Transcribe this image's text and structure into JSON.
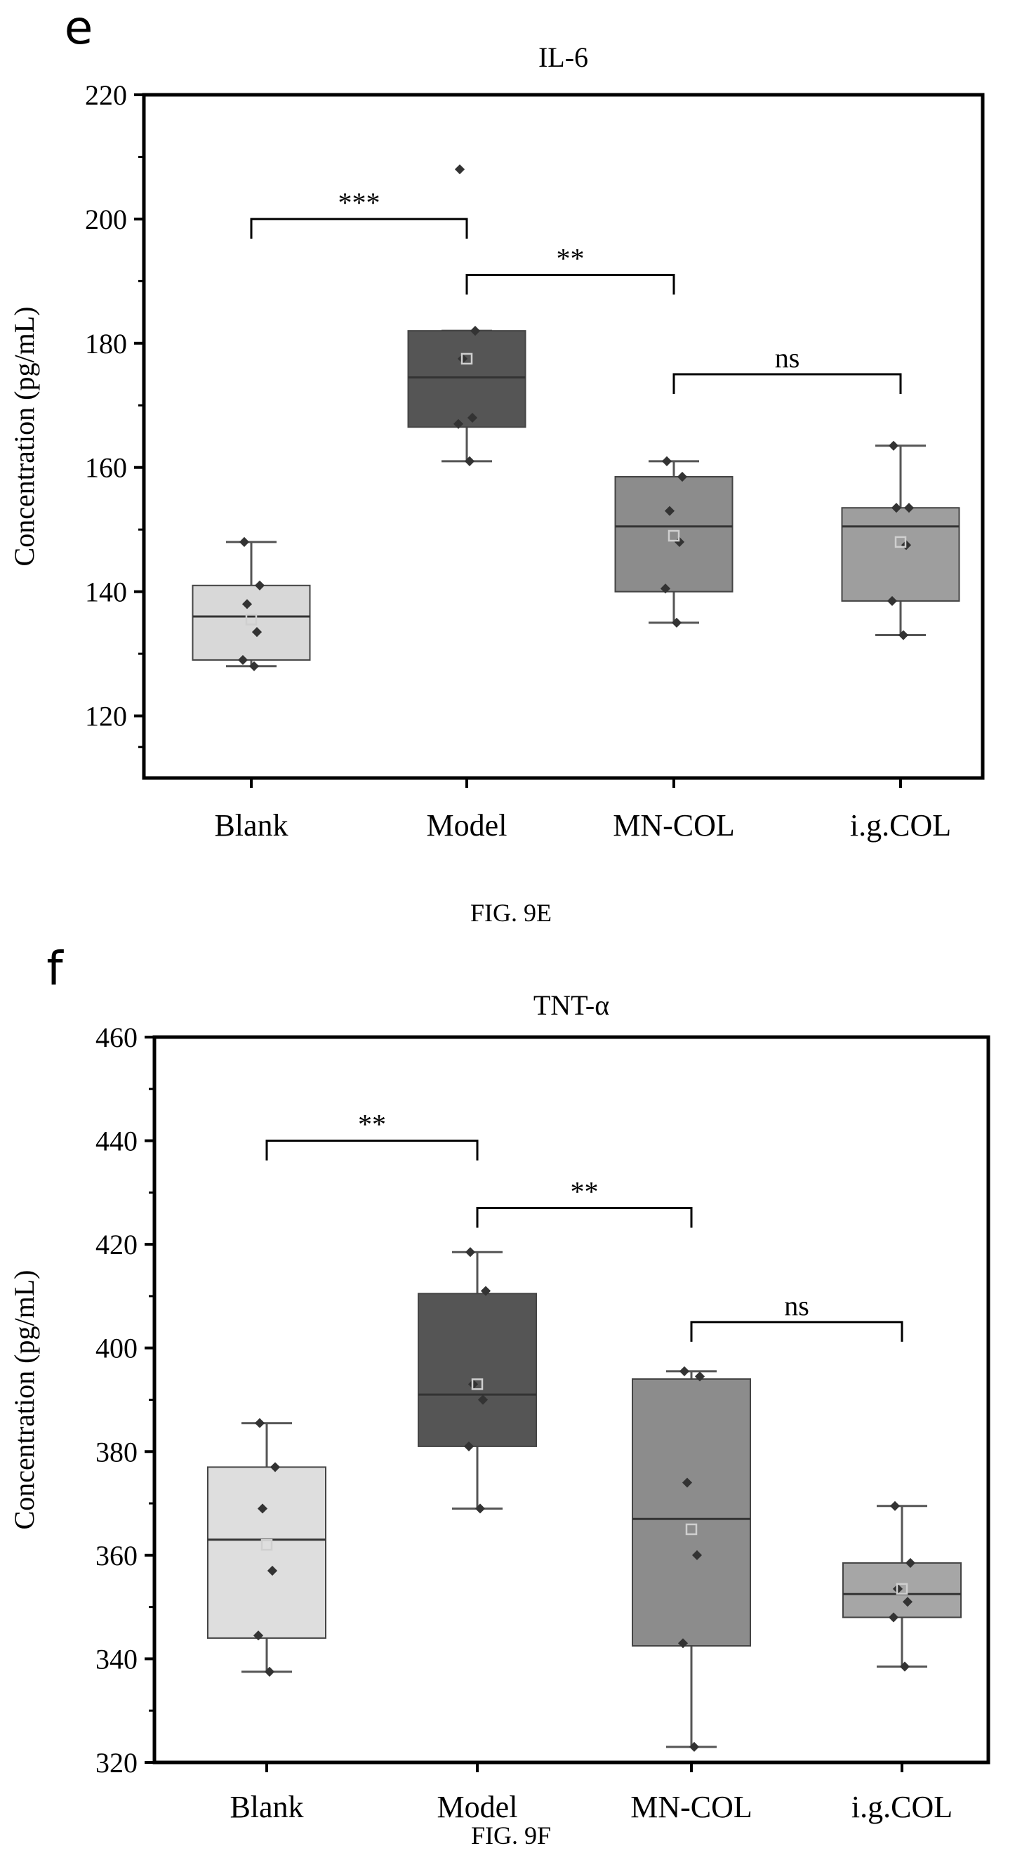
{
  "chart_data": [
    {
      "type": "box",
      "panel_letter": "e",
      "title": "IL-6",
      "ylabel": "Concentration (pg/mL)",
      "ylim": [
        110,
        220
      ],
      "yticks": [
        120,
        140,
        160,
        180,
        200,
        220
      ],
      "categories": [
        "Blank",
        "Model",
        "MN-COL",
        "i.g.COL"
      ],
      "caption": "FIG. 9E",
      "boxes": [
        {
          "category": "Blank",
          "min": 128,
          "q1": 129,
          "median": 136,
          "q3": 141,
          "max": 148,
          "mean": 135.5,
          "fill": "#d8d8d8",
          "points": [
            148,
            141,
            138,
            133.5,
            129,
            128
          ]
        },
        {
          "category": "Model",
          "min": 161,
          "q1": 166.5,
          "median": 174.5,
          "q3": 182,
          "max": 182,
          "mean": 177.5,
          "fill": "#555555",
          "points": [
            208,
            182,
            177.5,
            168,
            167,
            161
          ]
        },
        {
          "category": "MN-COL",
          "min": 135,
          "q1": 140,
          "median": 150.5,
          "q3": 158.5,
          "max": 161,
          "mean": 149,
          "fill": "#8c8c8c",
          "points": [
            161,
            158.5,
            153,
            148,
            140.5,
            135
          ]
        },
        {
          "category": "i.g.COL",
          "min": 133,
          "q1": 138.5,
          "median": 150.5,
          "q3": 153.5,
          "max": 163.5,
          "mean": 148,
          "fill": "#9e9e9e",
          "points": [
            163.5,
            153.5,
            153.5,
            147.5,
            138.5,
            133
          ]
        }
      ],
      "significance": [
        {
          "from": 0,
          "to": 1,
          "y": 200,
          "label": "***"
        },
        {
          "from": 1,
          "to": 2,
          "y": 191,
          "label": "**"
        },
        {
          "from": 2,
          "to": 3,
          "y": 175,
          "label": "ns"
        }
      ]
    },
    {
      "type": "box",
      "panel_letter": "f",
      "title": "TNT-α",
      "ylabel": "Concentration (pg/mL)",
      "ylim": [
        320,
        460
      ],
      "yticks": [
        320,
        340,
        360,
        380,
        400,
        420,
        440,
        460
      ],
      "categories": [
        "Blank",
        "Model",
        "MN-COL",
        "i.g.COL"
      ],
      "caption": "FIG. 9F",
      "boxes": [
        {
          "category": "Blank",
          "min": 337.5,
          "q1": 344,
          "median": 363,
          "q3": 377,
          "max": 385.5,
          "mean": 362,
          "fill": "#dedede",
          "points": [
            385.5,
            377,
            369,
            357,
            344.5,
            337.5
          ]
        },
        {
          "category": "Model",
          "min": 369,
          "q1": 381,
          "median": 391,
          "q3": 410.5,
          "max": 418.5,
          "mean": 393,
          "fill": "#555555",
          "points": [
            418.5,
            411,
            393,
            390,
            381,
            369
          ]
        },
        {
          "category": "MN-COL",
          "min": 323,
          "q1": 342.5,
          "median": 367,
          "q3": 394,
          "max": 395.5,
          "mean": 365,
          "fill": "#8c8c8c",
          "points": [
            395.5,
            394.5,
            374,
            360,
            343,
            323
          ]
        },
        {
          "category": "i.g.COL",
          "min": 338.5,
          "q1": 348,
          "median": 352.5,
          "q3": 358.5,
          "max": 369.5,
          "mean": 353.5,
          "fill": "#a6a6a6",
          "points": [
            369.5,
            358.5,
            353.5,
            351,
            348,
            338.5
          ]
        }
      ],
      "significance": [
        {
          "from": 0,
          "to": 1,
          "y": 440,
          "label": "**"
        },
        {
          "from": 1,
          "to": 2,
          "y": 427,
          "label": "**"
        },
        {
          "from": 2,
          "to": 3,
          "y": 405,
          "label": "ns"
        }
      ]
    }
  ],
  "colors": {
    "axis": "#000000",
    "whisker": "#555555",
    "point": "#333333",
    "mean_marker": "#cfcfcf"
  }
}
